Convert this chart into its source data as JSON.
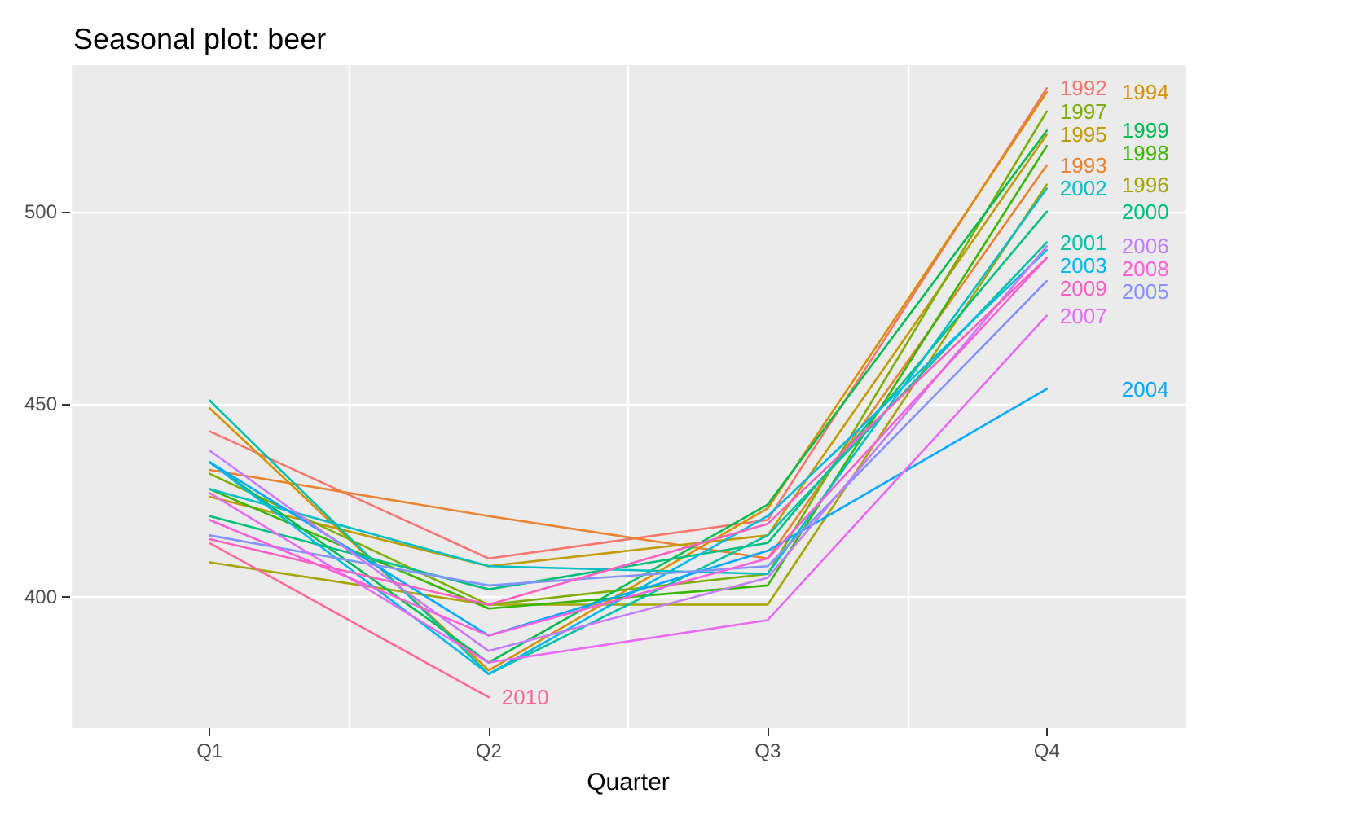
{
  "chart_data": {
    "type": "line",
    "title": "Seasonal plot: beer",
    "xlabel": "Quarter",
    "categories": [
      "Q1",
      "Q2",
      "Q3",
      "Q4"
    ],
    "ylim": [
      366,
      538
    ],
    "yticks": [
      400,
      450,
      500
    ],
    "grid": true,
    "legend": false,
    "marker": "none",
    "line_style": "solid",
    "series": [
      {
        "name": "1992",
        "color": "#F8766D",
        "values": [
          443,
          410,
          420,
          532
        ]
      },
      {
        "name": "1993",
        "color": "#EA8331",
        "values": [
          433,
          421,
          410,
          512
        ]
      },
      {
        "name": "1994",
        "color": "#D89000",
        "values": [
          449,
          381,
          423,
          531
        ]
      },
      {
        "name": "1995",
        "color": "#C09B00",
        "values": [
          426,
          408,
          416,
          520
        ]
      },
      {
        "name": "1996",
        "color": "#A3A500",
        "values": [
          409,
          398,
          398,
          507
        ]
      },
      {
        "name": "1997",
        "color": "#7CAE00",
        "values": [
          432,
          398,
          406,
          526
        ]
      },
      {
        "name": "1998",
        "color": "#39B600",
        "values": [
          428,
          397,
          403,
          517
        ]
      },
      {
        "name": "1999",
        "color": "#00BB4E",
        "values": [
          435,
          383,
          424,
          521
        ]
      },
      {
        "name": "2000",
        "color": "#00BF7D",
        "values": [
          421,
          402,
          414,
          500
        ]
      },
      {
        "name": "2001",
        "color": "#00C1A3",
        "values": [
          451,
          380,
          416,
          492
        ]
      },
      {
        "name": "2002",
        "color": "#00BFC4",
        "values": [
          428,
          408,
          406,
          506
        ]
      },
      {
        "name": "2003",
        "color": "#00B8E7",
        "values": [
          435,
          380,
          421,
          490
        ]
      },
      {
        "name": "2004",
        "color": "#00A9FF",
        "values": [
          435,
          390,
          412,
          454
        ]
      },
      {
        "name": "2005",
        "color": "#8494FF",
        "values": [
          416,
          403,
          408,
          482
        ]
      },
      {
        "name": "2006",
        "color": "#C77CFF",
        "values": [
          438,
          386,
          405,
          491
        ]
      },
      {
        "name": "2007",
        "color": "#E76BF3",
        "values": [
          427,
          383,
          394,
          473
        ]
      },
      {
        "name": "2008",
        "color": "#FA62DB",
        "values": [
          420,
          390,
          410,
          488
        ]
      },
      {
        "name": "2009",
        "color": "#FF61C3",
        "values": [
          415,
          398,
          419,
          488
        ]
      },
      {
        "name": "2010",
        "color": "#FF6A98",
        "values": [
          414,
          374,
          null,
          null
        ]
      }
    ]
  }
}
